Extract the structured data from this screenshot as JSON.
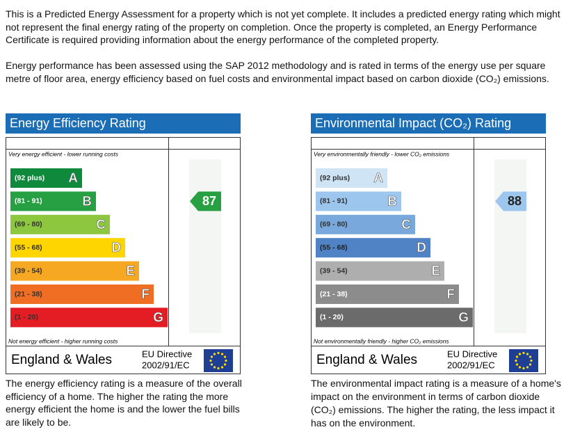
{
  "intro": [
    "This is a Predicted Energy Assessment for a property which is not yet complete. It includes a predicted energy rating which might not represent the final energy rating of the property on completion. Once the property is completed, an Energy Performance Certificate is required providing information about the energy performance of the completed property.",
    "Energy performance has been assessed using the SAP 2012 methodology and is rated in terms of the energy use per square metre of floor area, energy efficiency based on fuel costs and environmental impact based on carbon dioxide (CO₂) emissions."
  ],
  "panels": [
    {
      "title": "Energy Efficiency Rating",
      "top_label": "Very energy efficient - lower running costs",
      "bottom_label": "Not energy efficient - higher running costs",
      "bands": [
        {
          "range": "(92 plus)",
          "letter": "A"
        },
        {
          "range": "(81 - 91)",
          "letter": "B"
        },
        {
          "range": "(69 - 80)",
          "letter": "C"
        },
        {
          "range": "(55 - 68)",
          "letter": "D"
        },
        {
          "range": "(39 - 54)",
          "letter": "E"
        },
        {
          "range": "(21 - 38)",
          "letter": "F"
        },
        {
          "range": "(1 - 20)",
          "letter": "G"
        }
      ],
      "region": "England & Wales",
      "directive": "EU Directive",
      "directive_code": "2002/91/EC",
      "rating": 87,
      "description": "The energy efficiency rating is a measure of the overall efficiency of a home. The higher the rating the more energy efficient the home is and the lower the fuel bills are likely to be."
    },
    {
      "title": "Environmental Impact (CO₂) Rating",
      "top_label": "Very environmentally friendly - lower CO₂ emissions",
      "bottom_label": "Not environmentally friendly - higher CO₂ emissions",
      "bands": [
        {
          "range": "(92 plus)",
          "letter": "A"
        },
        {
          "range": "(81 - 91)",
          "letter": "B"
        },
        {
          "range": "(69 - 80)",
          "letter": "C"
        },
        {
          "range": "(55 - 68)",
          "letter": "D"
        },
        {
          "range": "(39 - 54)",
          "letter": "E"
        },
        {
          "range": "(21 - 38)",
          "letter": "F"
        },
        {
          "range": "(1 - 20)",
          "letter": "G"
        }
      ],
      "region": "England & Wales",
      "directive": "EU Directive",
      "directive_code": "2002/91/EC",
      "rating": 88,
      "description": "The environmental impact rating is a measure of a home's impact on the environment in terms of carbon dioxide (CO₂) emissions. The higher the rating, the less impact it has on the environment."
    }
  ]
}
